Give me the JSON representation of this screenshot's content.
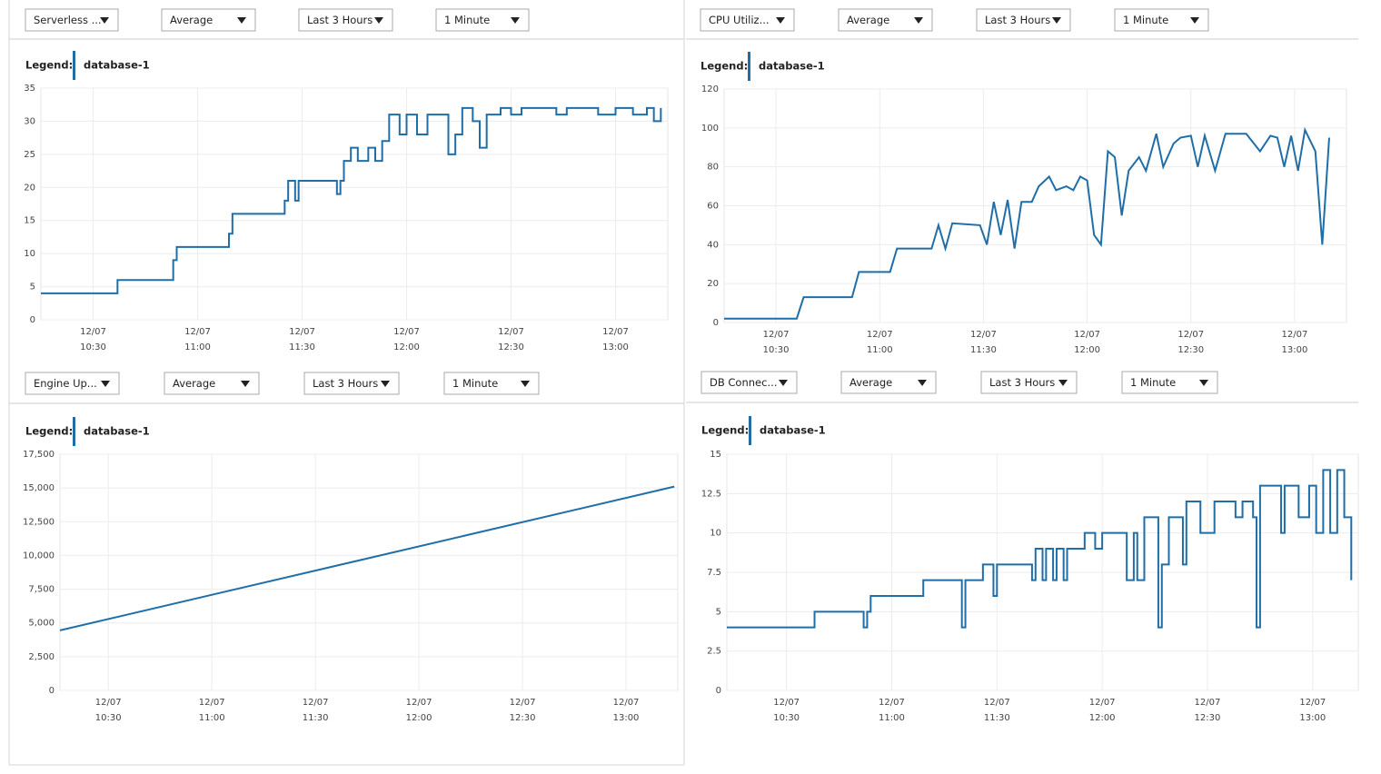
{
  "chart_data": [
    {
      "type": "line",
      "step": true,
      "dropdowns": [
        "Serverless ...",
        "Average",
        "Last 3 Hours",
        "1 Minute"
      ],
      "legend_title": "Legend:",
      "x": [
        "12/07 10:15",
        "12/07 10:37",
        "12/07 10:53",
        "12/07 10:54",
        "12/07 11:09",
        "12/07 11:10",
        "12/07 11:25",
        "12/07 11:26",
        "12/07 11:28",
        "12/07 11:29",
        "12/07 11:40",
        "12/07 11:41",
        "12/07 11:42",
        "12/07 11:44",
        "12/07 11:46",
        "12/07 11:49",
        "12/07 11:51",
        "12/07 11:53",
        "12/07 11:55",
        "12/07 11:58",
        "12/07 12:00",
        "12/07 12:03",
        "12/07 12:06",
        "12/07 12:08",
        "12/07 12:12",
        "12/07 12:14",
        "12/07 12:16",
        "12/07 12:19",
        "12/07 12:21",
        "12/07 12:23",
        "12/07 12:27",
        "12/07 12:30",
        "12/07 12:33",
        "12/07 12:43",
        "12/07 12:46",
        "12/07 12:55",
        "12/07 13:00",
        "12/07 13:05",
        "12/07 13:09",
        "12/07 13:11",
        "12/07 13:13"
      ],
      "series": [
        {
          "name": "database-1",
          "color": "#1f6ea8",
          "values": [
            4,
            6,
            9,
            11,
            13,
            16,
            18,
            21,
            18,
            21,
            19,
            21,
            24,
            26,
            24,
            26,
            24,
            27,
            31,
            28,
            31,
            28,
            31,
            31,
            25,
            28,
            32,
            30,
            26,
            31,
            32,
            31,
            32,
            31,
            32,
            31,
            32,
            31,
            32,
            30,
            32
          ]
        }
      ],
      "xlim": [
        "12/07 10:15",
        "12/07 13:15"
      ],
      "xticks": [
        "12/07 10:30",
        "12/07 11:00",
        "12/07 11:30",
        "12/07 12:00",
        "12/07 12:30",
        "12/07 13:00"
      ],
      "ylim": [
        0,
        35
      ],
      "yticks": [
        0,
        5,
        10,
        15,
        20,
        25,
        30,
        35
      ],
      "grid": true
    },
    {
      "type": "line",
      "step": false,
      "dropdowns": [
        "CPU Utiliz...",
        "Average",
        "Last 3 Hours",
        "1 Minute"
      ],
      "legend_title": "Legend:",
      "x": [
        "12/07 10:15",
        "12/07 10:36",
        "12/07 10:38",
        "12/07 10:52",
        "12/07 10:54",
        "12/07 11:03",
        "12/07 11:05",
        "12/07 11:15",
        "12/07 11:17",
        "12/07 11:19",
        "12/07 11:21",
        "12/07 11:29",
        "12/07 11:31",
        "12/07 11:33",
        "12/07 11:35",
        "12/07 11:37",
        "12/07 11:39",
        "12/07 11:41",
        "12/07 11:44",
        "12/07 11:46",
        "12/07 11:49",
        "12/07 11:51",
        "12/07 11:54",
        "12/07 11:56",
        "12/07 11:58",
        "12/07 12:00",
        "12/07 12:02",
        "12/07 12:04",
        "12/07 12:06",
        "12/07 12:08",
        "12/07 12:10",
        "12/07 12:12",
        "12/07 12:15",
        "12/07 12:17",
        "12/07 12:20",
        "12/07 12:22",
        "12/07 12:25",
        "12/07 12:27",
        "12/07 12:30",
        "12/07 12:32",
        "12/07 12:34",
        "12/07 12:37",
        "12/07 12:40",
        "12/07 12:46",
        "12/07 12:50",
        "12/07 12:53",
        "12/07 12:55",
        "12/07 12:57",
        "12/07 12:59",
        "12/07 13:01",
        "12/07 13:03",
        "12/07 13:06",
        "12/07 13:08",
        "12/07 13:10"
      ],
      "series": [
        {
          "name": "database-1",
          "color": "#1f6ea8",
          "values": [
            2,
            2,
            13,
            13,
            26,
            26,
            38,
            38,
            50,
            38,
            51,
            50,
            40,
            62,
            45,
            63,
            38,
            62,
            62,
            70,
            75,
            68,
            70,
            68,
            75,
            73,
            45,
            40,
            88,
            85,
            55,
            78,
            85,
            78,
            97,
            80,
            92,
            95,
            96,
            80,
            96,
            78,
            97,
            97,
            88,
            96,
            95,
            80,
            96,
            78,
            99,
            88,
            40,
            95
          ]
        }
      ],
      "xlim": [
        "12/07 10:15",
        "12/07 13:15"
      ],
      "xticks": [
        "12/07 10:30",
        "12/07 11:00",
        "12/07 11:30",
        "12/07 12:00",
        "12/07 12:30",
        "12/07 13:00"
      ],
      "ylim": [
        0,
        120
      ],
      "yticks": [
        0,
        20,
        40,
        60,
        80,
        100,
        120
      ],
      "grid": true
    },
    {
      "type": "line",
      "step": false,
      "dropdowns": [
        "Engine Up...",
        "Average",
        "Last 3 Hours",
        "1 Minute"
      ],
      "legend_title": "Legend:",
      "x": [
        "12/07 10:16",
        "12/07 13:14"
      ],
      "series": [
        {
          "name": "database-1",
          "color": "#1f6ea8",
          "values": [
            4450,
            15100
          ]
        }
      ],
      "xlim": [
        "12/07 10:16",
        "12/07 13:15"
      ],
      "xticks": [
        "12/07 10:30",
        "12/07 11:00",
        "12/07 11:30",
        "12/07 12:00",
        "12/07 12:30",
        "12/07 13:00"
      ],
      "ylim": [
        0,
        17500
      ],
      "yticks": [
        0,
        {
          "value": 2500,
          "label": "2,500"
        },
        {
          "value": 5000,
          "label": "5,000"
        },
        {
          "value": 7500,
          "label": "7,500"
        },
        {
          "value": 10000,
          "label": "10,000"
        },
        {
          "value": 12500,
          "label": "12,500"
        },
        {
          "value": 15000,
          "label": "15,000"
        },
        {
          "value": 17500,
          "label": "17,500"
        }
      ],
      "grid": true
    },
    {
      "type": "line",
      "step": true,
      "dropdowns": [
        "DB Connec...",
        "Average",
        "Last 3 Hours",
        "1 Minute"
      ],
      "legend_title": "Legend:",
      "x": [
        "12/07 10:13",
        "12/07 10:38",
        "12/07 10:52",
        "12/07 10:53",
        "12/07 10:54",
        "12/07 11:09",
        "12/07 11:20",
        "12/07 11:21",
        "12/07 11:26",
        "12/07 11:29",
        "12/07 11:30",
        "12/07 11:40",
        "12/07 11:41",
        "12/07 11:43",
        "12/07 11:44",
        "12/07 11:46",
        "12/07 11:47",
        "12/07 11:49",
        "12/07 11:50",
        "12/07 11:55",
        "12/07 11:58",
        "12/07 12:00",
        "12/07 12:07",
        "12/07 12:09",
        "12/07 12:10",
        "12/07 12:12",
        "12/07 12:16",
        "12/07 12:17",
        "12/07 12:19",
        "12/07 12:23",
        "12/07 12:24",
        "12/07 12:28",
        "12/07 12:32",
        "12/07 12:38",
        "12/07 12:40",
        "12/07 12:43",
        "12/07 12:44",
        "12/07 12:45",
        "12/07 12:51",
        "12/07 12:52",
        "12/07 12:56",
        "12/07 12:59",
        "12/07 13:01",
        "12/07 13:03",
        "12/07 13:05",
        "12/07 13:07",
        "12/07 13:09",
        "12/07 13:11"
      ],
      "series": [
        {
          "name": "database-1",
          "color": "#1f6ea8",
          "values": [
            4,
            5,
            4,
            5,
            6,
            7,
            4,
            7,
            8,
            6,
            8,
            7,
            9,
            7,
            9,
            7,
            9,
            7,
            9,
            10,
            9,
            10,
            7,
            10,
            7,
            11,
            4,
            8,
            11,
            8,
            12,
            10,
            12,
            11,
            12,
            11,
            4,
            13,
            10,
            13,
            11,
            13,
            10,
            14,
            10,
            14,
            11,
            7
          ]
        }
      ],
      "xlim": [
        "12/07 10:13",
        "12/07 13:13"
      ],
      "xticks": [
        "12/07 10:30",
        "12/07 11:00",
        "12/07 11:30",
        "12/07 12:00",
        "12/07 12:30",
        "12/07 13:00"
      ],
      "ylim": [
        0,
        15
      ],
      "yticks": [
        0,
        {
          "value": 2.5,
          "label": "2.5"
        },
        5,
        {
          "value": 7.5,
          "label": "7.5"
        },
        10,
        {
          "value": 12.5,
          "label": "12.5"
        },
        15
      ],
      "grid": true
    }
  ]
}
